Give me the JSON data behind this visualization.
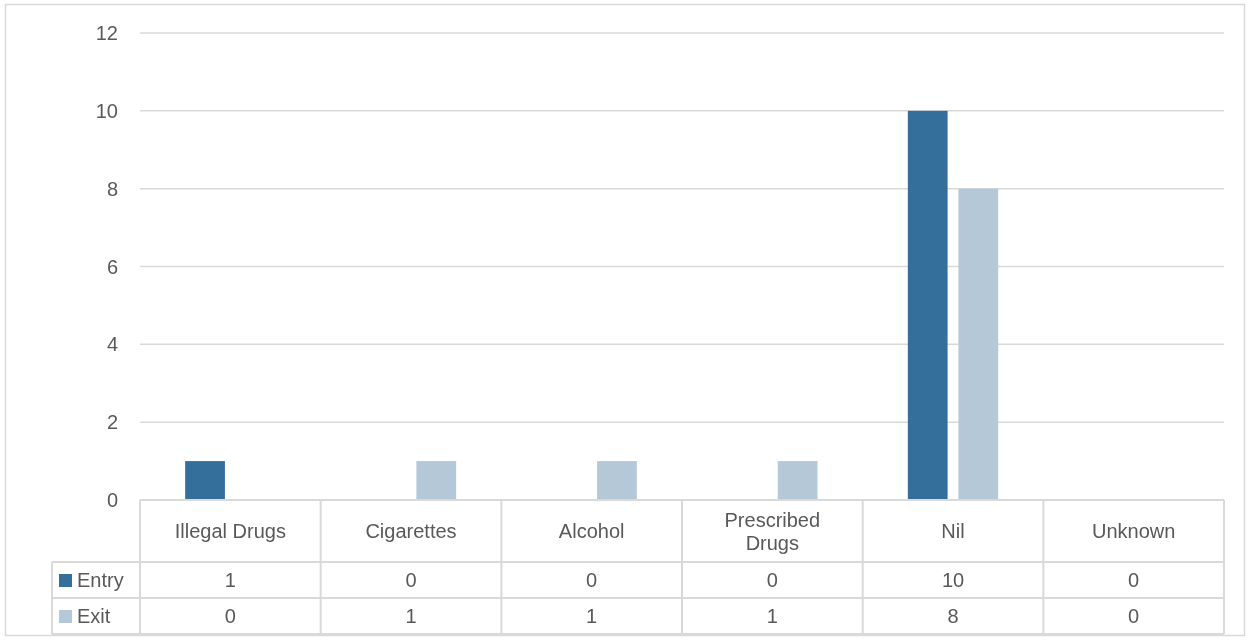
{
  "chart_data": {
    "type": "bar",
    "categories": [
      "Illegal Drugs",
      "Cigarettes",
      "Alcohol",
      "Prescribed Drugs",
      "Nil",
      "Unknown"
    ],
    "series": [
      {
        "name": "Entry",
        "color": "#336f9a",
        "values": [
          1,
          0,
          0,
          0,
          10,
          0
        ]
      },
      {
        "name": "Exit",
        "color": "#b4c8d7",
        "values": [
          0,
          1,
          1,
          1,
          8,
          0
        ]
      }
    ],
    "ylim": [
      0,
      12
    ],
    "yticks": [
      0,
      2,
      4,
      6,
      8,
      10,
      12
    ],
    "grid": true,
    "legend": "bottom",
    "data_labels": true
  }
}
